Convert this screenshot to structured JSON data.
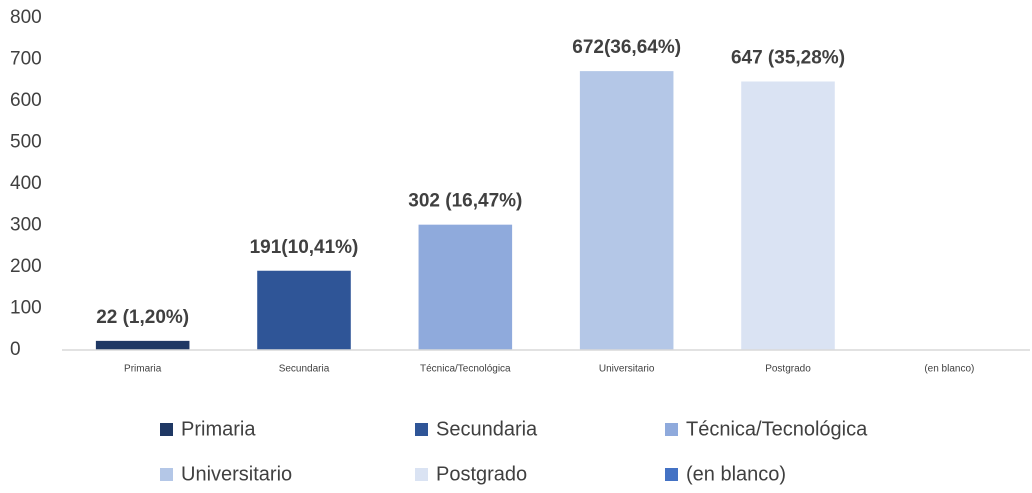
{
  "chart_data": {
    "type": "bar",
    "categories": [
      "Primaria",
      "Secundaria",
      "Técnica/Tecnológica",
      "Universitario",
      "Postgrado",
      "(en blanco)"
    ],
    "values": [
      22,
      191,
      302,
      672,
      647,
      null
    ],
    "value_labels": [
      "22 (1,20%)",
      "191(10,41%)",
      "302 (16,47%)",
      "672(36,64%)",
      "647 (35,28%)",
      null
    ],
    "colors": [
      "#1f3864",
      "#2f5597",
      "#8faadc",
      "#b4c7e7",
      "#dae3f3",
      "#4472c4"
    ],
    "ylim": [
      0,
      800
    ],
    "yticks": [
      0,
      100,
      200,
      300,
      400,
      500,
      600,
      700,
      800
    ],
    "grid": false,
    "legend": "bottom"
  }
}
